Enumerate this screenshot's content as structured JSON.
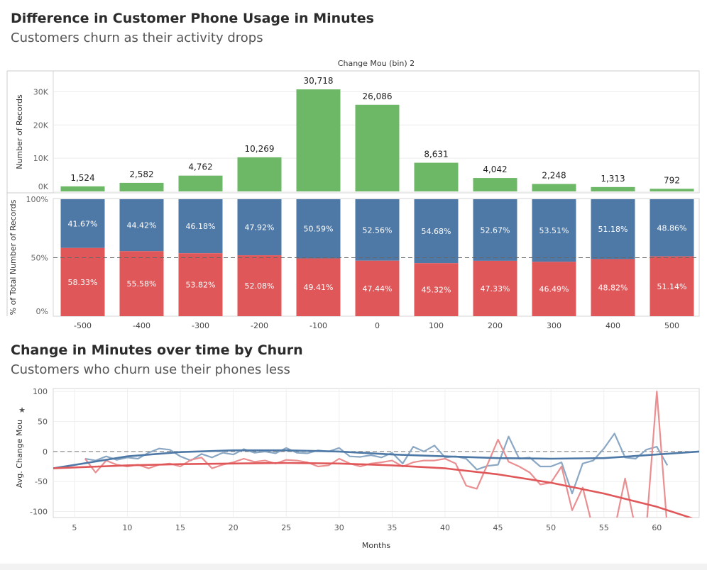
{
  "header": {
    "title": "Difference in Customer Phone Usage in Minutes",
    "subtitle": "Customers churn as their activity drops"
  },
  "section2": {
    "title": "Change in Minutes over time by Churn",
    "subtitle": "Customers who churn use their phones less"
  },
  "colors": {
    "green": "#6db866",
    "blue": "#4e79a7",
    "red": "#e05759",
    "blue_light": "#8aa7c4",
    "red_light": "#ea8f91"
  },
  "chart_data": [
    {
      "type": "bar",
      "title": "Change Mou (bin) 2",
      "ylabel": "Number of Records",
      "ylim": [
        0,
        35000
      ],
      "yticks": [
        "0K",
        "10K",
        "20K",
        "30K"
      ],
      "categories": [
        "-500",
        "-400",
        "-300",
        "-200",
        "-100",
        "0",
        "100",
        "200",
        "300",
        "400",
        "500"
      ],
      "values": [
        1524,
        2582,
        4762,
        10269,
        30718,
        26086,
        8631,
        4042,
        2248,
        1313,
        792
      ],
      "value_labels": [
        "1,524",
        "2,582",
        "4,762",
        "10,269",
        "30,718",
        "26,086",
        "8,631",
        "4,042",
        "2,248",
        "1,313",
        "792"
      ]
    },
    {
      "type": "bar",
      "stacked": true,
      "ylabel": "% of Total Number of Records",
      "yticks": [
        "0%",
        "50%",
        "100%"
      ],
      "reference_line": 50,
      "categories": [
        "-500",
        "-400",
        "-300",
        "-200",
        "-100",
        "0",
        "100",
        "200",
        "300",
        "400",
        "500"
      ],
      "series": [
        {
          "values": [
            41.67,
            44.42,
            46.18,
            47.92,
            50.59,
            52.56,
            54.68,
            52.67,
            53.51,
            51.18,
            48.86
          ],
          "labels": [
            "41.67%",
            "44.42%",
            "46.18%",
            "47.92%",
            "50.59%",
            "52.56%",
            "54.68%",
            "52.67%",
            "53.51%",
            "51.18%",
            "48.86%"
          ]
        },
        {
          "values": [
            58.33,
            55.58,
            53.82,
            52.08,
            49.41,
            47.44,
            45.32,
            47.33,
            46.49,
            48.82,
            51.14
          ],
          "labels": [
            "58.33%",
            "55.58%",
            "53.82%",
            "52.08%",
            "49.41%",
            "47.44%",
            "45.32%",
            "47.33%",
            "46.49%",
            "48.82%",
            "51.14%"
          ]
        }
      ]
    },
    {
      "type": "line",
      "xlabel": "Months",
      "ylabel": "Avg. Change Mou",
      "xlim": [
        3,
        64
      ],
      "ylim": [
        -110,
        105
      ],
      "xticks": [
        "5",
        "10",
        "15",
        "20",
        "25",
        "30",
        "35",
        "40",
        "45",
        "50",
        "55",
        "60"
      ],
      "yticks": [
        "100",
        "50",
        "0",
        "-50",
        "-100"
      ],
      "reference_line": 0,
      "series": [
        {
          "x": [
            6,
            7,
            8,
            9,
            10,
            11,
            12,
            13,
            14,
            15,
            16,
            17,
            18,
            19,
            20,
            21,
            22,
            23,
            24,
            25,
            26,
            27,
            28,
            29,
            30,
            31,
            32,
            33,
            34,
            35,
            36,
            37,
            38,
            39,
            40,
            41,
            42,
            43,
            44,
            45,
            46,
            47,
            48,
            49,
            50,
            51,
            52,
            53,
            54,
            55,
            56,
            57,
            58,
            59,
            60,
            61
          ],
          "y": [
            -12,
            -15,
            -8,
            -14,
            -10,
            -12,
            -2,
            5,
            3,
            -8,
            -15,
            -4,
            -10,
            -2,
            -5,
            4,
            -2,
            0,
            -3,
            6,
            -2,
            -3,
            2,
            0,
            6,
            -8,
            -9,
            -6,
            -10,
            -2,
            -20,
            8,
            0,
            10,
            -10,
            -8,
            -12,
            -30,
            -24,
            -22,
            25,
            -12,
            -10,
            -25,
            -25,
            -18,
            -70,
            -20,
            -15,
            5,
            30,
            -10,
            -12,
            3,
            8,
            -23
          ]
        },
        {
          "x": [
            6,
            7,
            8,
            9,
            10,
            11,
            12,
            13,
            14,
            15,
            16,
            17,
            18,
            19,
            20,
            21,
            22,
            23,
            24,
            25,
            26,
            27,
            28,
            29,
            30,
            31,
            32,
            33,
            34,
            35,
            36,
            37,
            38,
            39,
            40,
            41,
            42,
            43,
            44,
            45,
            46,
            47,
            48,
            49,
            50,
            51,
            52,
            53,
            54,
            55,
            56,
            57,
            58,
            59,
            60,
            61
          ],
          "y": [
            -12,
            -35,
            -15,
            -22,
            -25,
            -22,
            -28,
            -22,
            -20,
            -25,
            -14,
            -10,
            -28,
            -22,
            -18,
            -12,
            -17,
            -15,
            -20,
            -14,
            -15,
            -18,
            -25,
            -23,
            -12,
            -20,
            -25,
            -20,
            -18,
            -15,
            -25,
            -18,
            -15,
            -15,
            -12,
            -20,
            -57,
            -62,
            -22,
            20,
            -17,
            -25,
            -35,
            -55,
            -52,
            -25,
            -98,
            -60,
            -130,
            -130,
            -130,
            -45,
            -130,
            -130,
            100,
            -130
          ]
        },
        {
          "type": "trend",
          "x": [
            3,
            10,
            15,
            20,
            25,
            30,
            35,
            40,
            45,
            50,
            55,
            60,
            64
          ],
          "y": [
            -28,
            -8,
            -1,
            2,
            2,
            0,
            -5,
            -8,
            -11,
            -12,
            -11,
            -5,
            0
          ]
        },
        {
          "type": "trend",
          "x": [
            3,
            10,
            15,
            20,
            25,
            30,
            35,
            40,
            45,
            50,
            55,
            60,
            64
          ],
          "y": [
            -28,
            -23,
            -21,
            -20,
            -19,
            -20,
            -23,
            -28,
            -38,
            -52,
            -70,
            -92,
            -115
          ]
        }
      ]
    }
  ]
}
